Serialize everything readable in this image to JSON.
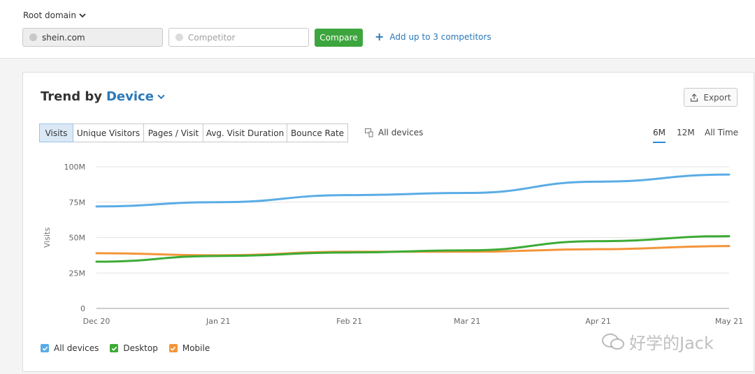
{
  "header": {
    "root_domain_label": "Root domain",
    "domain_value": "shein.com",
    "competitor_placeholder": "Competitor",
    "compare_label": "Compare",
    "add_competitors_label": "Add up to 3 competitors"
  },
  "card": {
    "title_prefix": "Trend by",
    "title_dimension": "Device",
    "export_label": "Export"
  },
  "metric_tabs": [
    {
      "label": "Visits",
      "active": true
    },
    {
      "label": "Unique Visitors",
      "active": false
    },
    {
      "label": "Pages / Visit",
      "active": false
    },
    {
      "label": "Avg. Visit Duration",
      "active": false
    },
    {
      "label": "Bounce Rate",
      "active": false
    }
  ],
  "device_filter": "All devices",
  "ranges": [
    {
      "label": "6M",
      "active": true
    },
    {
      "label": "12M",
      "active": false
    },
    {
      "label": "All Time",
      "active": false
    }
  ],
  "colors": {
    "all_devices": "#5aace6",
    "desktop": "#3dab35",
    "mobile": "#f3953a",
    "accent": "#2a78b9",
    "compare": "#3da53d"
  },
  "chart_data": {
    "type": "line",
    "ylabel": "Visits",
    "ylim": [
      0,
      100000000
    ],
    "y_ticks": [
      {
        "value": 0,
        "label": "0"
      },
      {
        "value": 25000000,
        "label": "25M"
      },
      {
        "value": 50000000,
        "label": "50M"
      },
      {
        "value": 75000000,
        "label": "75M"
      },
      {
        "value": 100000000,
        "label": "100M"
      }
    ],
    "categories": [
      "Dec 20",
      "Jan 21",
      "Feb 21",
      "Mar 21",
      "Apr 21",
      "May 21"
    ],
    "x": [
      0,
      1,
      2,
      3,
      4,
      5
    ],
    "x_tick_positions": [
      0,
      0.93,
      1.93,
      2.83,
      3.83,
      4.83
    ],
    "x_max": 4.83,
    "series": [
      {
        "name": "All devices",
        "color": "#5aace6",
        "points": [
          [
            0,
            72000000
          ],
          [
            0.93,
            75000000
          ],
          [
            1.93,
            80000000
          ],
          [
            2.83,
            81500000
          ],
          [
            3.83,
            89500000
          ],
          [
            4.83,
            94500000
          ]
        ]
      },
      {
        "name": "Desktop",
        "color": "#3dab35",
        "points": [
          [
            0,
            33000000
          ],
          [
            0.93,
            37000000
          ],
          [
            1.93,
            39500000
          ],
          [
            2.83,
            41000000
          ],
          [
            3.83,
            47500000
          ],
          [
            4.83,
            51000000
          ]
        ]
      },
      {
        "name": "Mobile",
        "color": "#f3953a",
        "points": [
          [
            0,
            39000000
          ],
          [
            0.93,
            37500000
          ],
          [
            1.93,
            40000000
          ],
          [
            2.83,
            40000000
          ],
          [
            3.83,
            41800000
          ],
          [
            4.83,
            44000000
          ]
        ]
      }
    ],
    "grid": true,
    "legend_position": "bottom-left"
  },
  "watermark": "好学的Jack"
}
